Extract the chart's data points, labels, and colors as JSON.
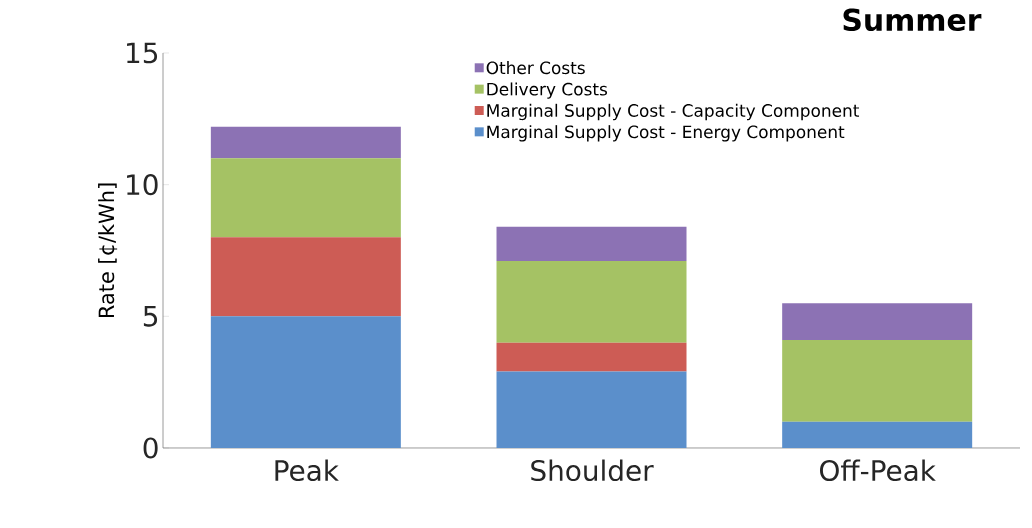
{
  "chart_data": {
    "type": "bar",
    "title": "Summer",
    "ylabel": "Rate [¢/kWh]",
    "categories": [
      "Peak",
      "Shoulder",
      "Off-Peak"
    ],
    "stacked": true,
    "ylim": [
      0,
      15
    ],
    "yticks": [
      0,
      5,
      10,
      15
    ],
    "legend": "top",
    "series": [
      {
        "name": "Marginal Supply Cost - Energy Component",
        "color": "#5b8fcb",
        "values": [
          5,
          2.9,
          1.0
        ]
      },
      {
        "name": "Marginal Supply Cost - Capacity Component",
        "color": "#cd5c55",
        "values": [
          3,
          1.1,
          0
        ]
      },
      {
        "name": "Delivery Costs",
        "color": "#a5c264",
        "values": [
          3,
          3.1,
          3.1
        ]
      },
      {
        "name": "Other Costs",
        "color": "#8c72b4",
        "values": [
          1.2,
          1.3,
          1.4
        ]
      }
    ]
  }
}
